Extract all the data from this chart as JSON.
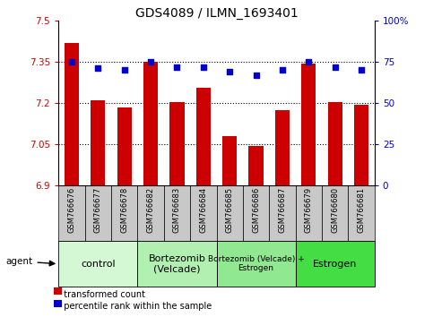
{
  "title": "GDS4089 / ILMN_1693401",
  "samples": [
    "GSM766676",
    "GSM766677",
    "GSM766678",
    "GSM766682",
    "GSM766683",
    "GSM766684",
    "GSM766685",
    "GSM766686",
    "GSM766687",
    "GSM766679",
    "GSM766680",
    "GSM766681"
  ],
  "bar_values": [
    7.42,
    7.21,
    7.185,
    7.35,
    7.205,
    7.255,
    7.08,
    7.045,
    7.175,
    7.345,
    7.205,
    7.195
  ],
  "scatter_values": [
    75,
    71,
    70,
    75,
    72,
    72,
    69,
    67,
    70,
    75,
    72,
    70
  ],
  "ylim_left": [
    6.9,
    7.5
  ],
  "ylim_right": [
    0,
    100
  ],
  "yticks_left": [
    6.9,
    7.05,
    7.2,
    7.35,
    7.5
  ],
  "yticks_right": [
    0,
    25,
    50,
    75,
    100
  ],
  "ytick_labels_left": [
    "6.9",
    "7.05",
    "7.2",
    "7.35",
    "7.5"
  ],
  "ytick_labels_right": [
    "0",
    "25",
    "50",
    "75",
    "100%"
  ],
  "hlines": [
    7.05,
    7.2,
    7.35
  ],
  "bar_color": "#cc0000",
  "scatter_color": "#0000cc",
  "groups": [
    {
      "label": "control",
      "start": 0,
      "end": 3,
      "color": "#d4f7d4",
      "fontsize": 8
    },
    {
      "label": "Bortezomib\n(Velcade)",
      "start": 3,
      "end": 6,
      "color": "#b2f0b2",
      "fontsize": 8
    },
    {
      "label": "Bortezomib (Velcade) +\nEstrogen",
      "start": 6,
      "end": 9,
      "color": "#90e890",
      "fontsize": 6.5
    },
    {
      "label": "Estrogen",
      "start": 9,
      "end": 12,
      "color": "#44dd44",
      "fontsize": 8
    }
  ],
  "agent_label": "agent",
  "legend_bar_label": "transformed count",
  "legend_scatter_label": "percentile rank within the sample",
  "bar_width": 0.55,
  "tick_area_color": "#c8c8c8",
  "title_fontsize": 10,
  "axis_fontsize": 7.5,
  "sample_fontsize": 6.0
}
